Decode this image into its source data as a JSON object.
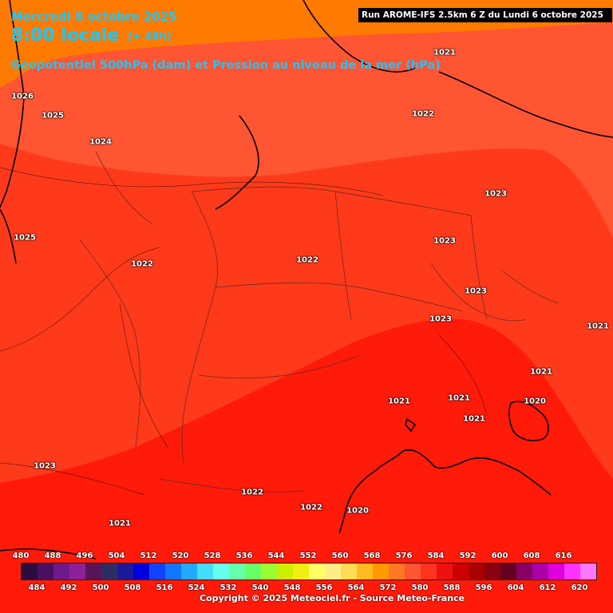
{
  "header": {
    "date": "Mercredi 8 octobre 2025",
    "time": "8:00 locale",
    "lead": "(+ 48h)",
    "title": "Geopotentiel 500hPa (dam) et Pression au niveau de la mer (hPa)",
    "run": "Run AROME-IFS 2.5km 6 Z du Lundi 6 octobre 2025"
  },
  "pressure_labels": [
    "1021",
    "1026",
    "1025",
    "1022",
    "1024",
    "1023",
    "1025",
    "1023",
    "1022",
    "1022",
    "1023",
    "1023",
    "1021",
    "1021",
    "1021",
    "1021",
    "1020",
    "1021",
    "1023",
    "1022",
    "1022",
    "1020",
    "1021"
  ],
  "scale": {
    "colors": [
      "#2a0d3f",
      "#4a1060",
      "#6e1a8a",
      "#8b2299",
      "#5a1558",
      "#2d2d66",
      "#1a1a99",
      "#0000dd",
      "#1144ff",
      "#1177ff",
      "#22aaff",
      "#44ddff",
      "#66ffee",
      "#66ffaa",
      "#66ff66",
      "#99ff33",
      "#ccee00",
      "#eeee11",
      "#ffff66",
      "#ffee88",
      "#ffdd55",
      "#ffbb22",
      "#ff9900",
      "#ff7722",
      "#ff5533",
      "#ff3322",
      "#ee1111",
      "#cc0000",
      "#aa0000",
      "#880011",
      "#660022",
      "#880066",
      "#aa00aa",
      "#dd00dd",
      "#ff33ff",
      "#ff77ff"
    ],
    "top_ticks": [
      "480",
      "488",
      "496",
      "504",
      "512",
      "520",
      "528",
      "536",
      "544",
      "552",
      "560",
      "568",
      "576",
      "584",
      "592",
      "600",
      "608",
      "616"
    ],
    "bottom_ticks": [
      "484",
      "492",
      "500",
      "508",
      "516",
      "524",
      "532",
      "540",
      "548",
      "556",
      "564",
      "572",
      "580",
      "588",
      "596",
      "604",
      "612",
      "620"
    ]
  },
  "copyright": "Copyright © 2025 Meteociel.fr - Source Meteo-France"
}
